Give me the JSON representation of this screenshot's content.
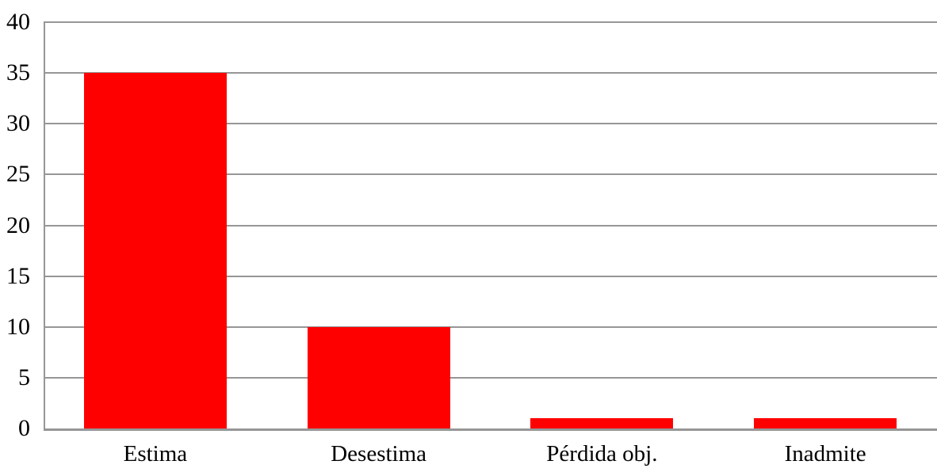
{
  "chart_data": {
    "type": "bar",
    "title": "",
    "xlabel": "",
    "ylabel": "",
    "categories": [
      "Estima",
      "Desestima",
      "Pérdida obj.",
      "Inadmite"
    ],
    "values": [
      35,
      10,
      1,
      1
    ],
    "ylim": [
      0,
      40
    ],
    "yticks": [
      0,
      5,
      10,
      15,
      20,
      25,
      30,
      35,
      40
    ],
    "grid": true,
    "legend": false,
    "colors": {
      "bar": "#FF0000",
      "gridline": "#969696",
      "axis": "#969696",
      "text": "#000000",
      "background": "#FFFFFF"
    }
  }
}
